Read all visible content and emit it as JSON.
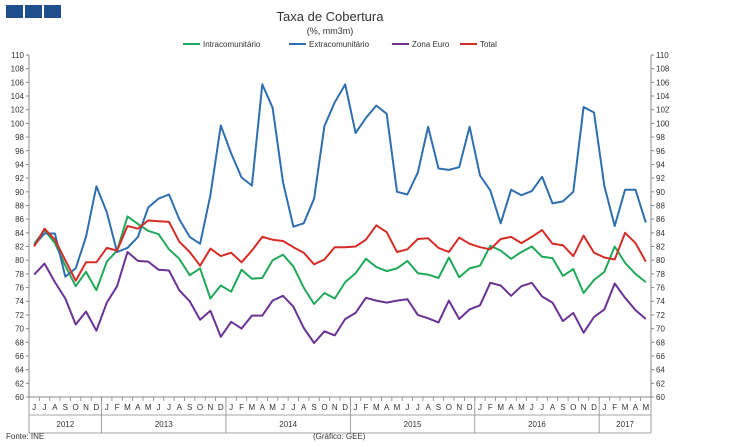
{
  "brand": {
    "logo_color": "#1f4e8c"
  },
  "chart_data": {
    "type": "line",
    "title": "Taxa de Cobertura",
    "subtitle": "(%, mm3m)",
    "source": "Fonte: INE",
    "credit": "(Gráfico: GEE)",
    "ylim": [
      60,
      110
    ],
    "yticks": [
      60,
      62,
      64,
      66,
      68,
      70,
      72,
      74,
      76,
      78,
      80,
      82,
      84,
      86,
      88,
      90,
      92,
      94,
      96,
      98,
      100,
      102,
      104,
      106,
      108,
      110
    ],
    "grid": false,
    "legend_position": "top",
    "month_labels": [
      "J",
      "J",
      "A",
      "S",
      "O",
      "N",
      "D",
      "J",
      "F",
      "M",
      "A",
      "M",
      "J",
      "J",
      "A",
      "S",
      "O",
      "N",
      "D",
      "J",
      "F",
      "M",
      "A",
      "M",
      "J",
      "J",
      "A",
      "S",
      "O",
      "N",
      "D",
      "J",
      "F",
      "M",
      "A",
      "M",
      "J",
      "J",
      "A",
      "S",
      "O",
      "N",
      "D",
      "J",
      "F",
      "M",
      "A",
      "M",
      "J",
      "J",
      "A",
      "S",
      "O",
      "N",
      "D",
      "J",
      "F",
      "M",
      "A",
      "M"
    ],
    "year_groups": [
      {
        "label": "2012",
        "start": 0,
        "end": 6
      },
      {
        "label": "2013",
        "start": 7,
        "end": 18
      },
      {
        "label": "2014",
        "start": 19,
        "end": 30
      },
      {
        "label": "2015",
        "start": 31,
        "end": 42
      },
      {
        "label": "2016",
        "start": 43,
        "end": 54
      },
      {
        "label": "2017",
        "start": 55,
        "end": 59
      }
    ],
    "series": [
      {
        "name": "Intracomunitário",
        "color": "#21a85a",
        "values": [
          82.4,
          84.4,
          82.5,
          79.2,
          76.2,
          78.3,
          75.6,
          79.8,
          81.4,
          86.4,
          85.3,
          84.3,
          83.8,
          81.6,
          80.2,
          77.8,
          78.8,
          74.4,
          76.3,
          75.4,
          78.6,
          77.3,
          77.4,
          80.0,
          80.8,
          79.1,
          76.0,
          73.6,
          75.2,
          74.4,
          76.8,
          78.1,
          80.2,
          79.0,
          78.4,
          78.8,
          79.9,
          78.1,
          77.9,
          77.4,
          80.4,
          77.5,
          78.8,
          79.2,
          82.1,
          81.4,
          80.2,
          81.2,
          82.0,
          80.5,
          80.3,
          77.7,
          78.7,
          75.2,
          77.1,
          78.3,
          82.0,
          79.6,
          78.0,
          76.8
        ]
      },
      {
        "name": "Extracomunitário",
        "color": "#2f6fb0",
        "values": [
          82.2,
          83.9,
          83.9,
          77.6,
          78.8,
          83.4,
          90.8,
          87.0,
          81.2,
          81.8,
          83.4,
          87.7,
          89.0,
          89.6,
          86.0,
          83.4,
          82.4,
          89.5,
          99.7,
          95.6,
          92.1,
          90.9,
          105.7,
          102.3,
          91.4,
          84.9,
          85.4,
          89.0,
          99.6,
          103.1,
          105.7,
          98.6,
          100.8,
          102.6,
          101.4,
          90.0,
          89.6,
          92.8,
          99.5,
          93.4,
          93.2,
          93.6,
          99.5,
          92.4,
          90.2,
          85.4,
          90.3,
          89.5,
          90.1,
          92.2,
          88.3,
          88.6,
          90.0,
          102.4,
          101.6,
          90.8,
          85.0,
          90.3,
          90.3,
          85.5
        ]
      },
      {
        "name": "Zona Euro",
        "color": "#6a3393",
        "values": [
          77.9,
          79.5,
          76.8,
          74.4,
          70.6,
          72.5,
          69.7,
          73.8,
          76.2,
          81.2,
          79.9,
          79.8,
          78.6,
          78.5,
          75.6,
          74.0,
          71.3,
          72.6,
          68.8,
          71.0,
          70.0,
          71.9,
          71.9,
          74.1,
          74.8,
          73.2,
          70.1,
          67.9,
          69.6,
          69.0,
          71.4,
          72.3,
          74.5,
          74.1,
          73.8,
          74.1,
          74.3,
          72.0,
          71.5,
          70.9,
          74.1,
          71.4,
          72.8,
          73.4,
          76.7,
          76.3,
          74.8,
          76.2,
          76.7,
          74.7,
          73.8,
          71.1,
          72.3,
          69.4,
          71.7,
          72.8,
          76.6,
          74.5,
          72.7,
          71.4
        ]
      },
      {
        "name": "Total",
        "color": "#d42d27",
        "values": [
          82.0,
          84.6,
          83.0,
          80.0,
          77.0,
          79.7,
          79.7,
          81.8,
          81.4,
          85.0,
          84.6,
          85.8,
          85.7,
          85.6,
          82.7,
          81.2,
          79.2,
          81.7,
          80.6,
          81.1,
          79.7,
          81.4,
          83.4,
          83.0,
          82.8,
          81.9,
          81.1,
          79.4,
          80.1,
          81.9,
          81.9,
          82.0,
          83.0,
          85.1,
          84.1,
          81.2,
          81.6,
          83.1,
          83.2,
          81.8,
          81.2,
          83.3,
          82.4,
          81.9,
          81.6,
          83.1,
          83.4,
          82.5,
          83.4,
          84.4,
          82.4,
          82.2,
          80.6,
          83.6,
          81.1,
          80.4,
          80.1,
          84.0,
          82.5,
          79.8
        ]
      }
    ]
  }
}
